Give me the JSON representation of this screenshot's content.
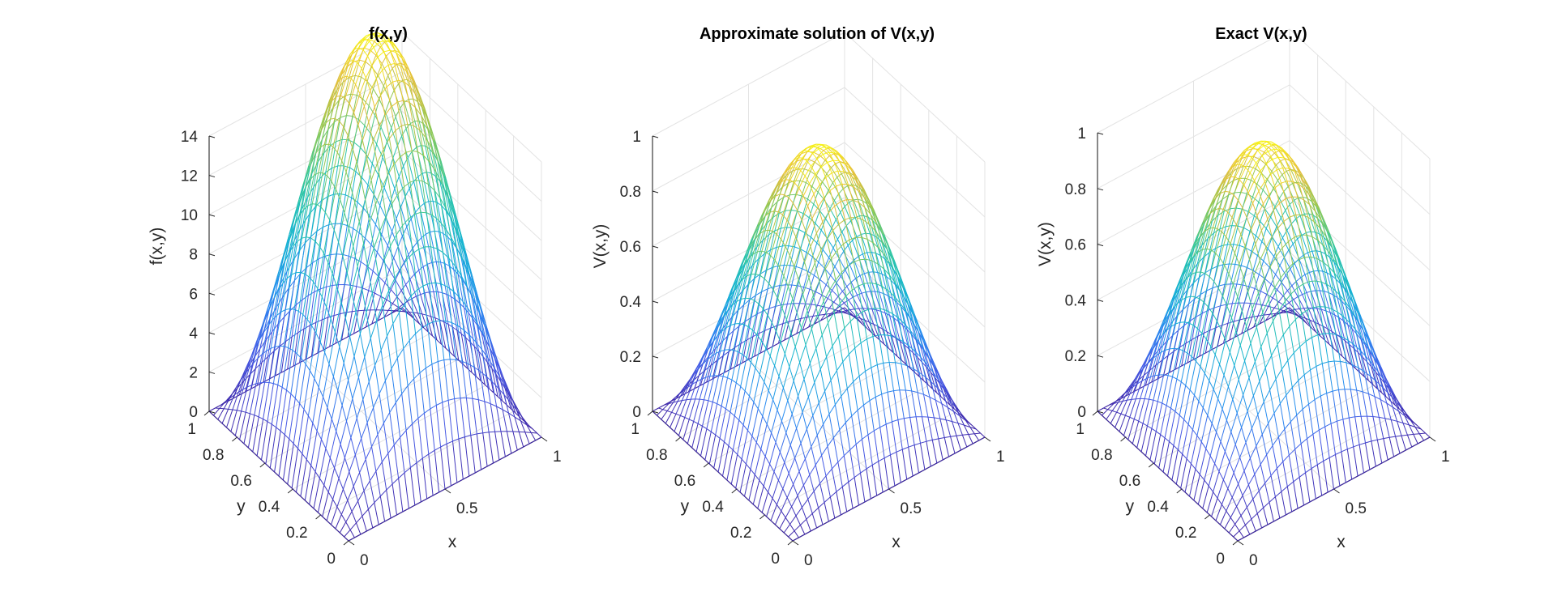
{
  "chart_data": [
    {
      "type": "surface",
      "title": "f(x,y)",
      "xlabel": "x",
      "ylabel": "y",
      "zlabel": "f(x,y)",
      "xlim": [
        0,
        1
      ],
      "ylim": [
        0,
        1
      ],
      "zlim": [
        0,
        14
      ],
      "xticks": [
        "0",
        "0.5",
        "1"
      ],
      "yticks": [
        "0",
        "0.2",
        "0.4",
        "0.6",
        "0.8",
        "1"
      ],
      "zticks": [
        "0",
        "2",
        "4",
        "6",
        "8",
        "10",
        "12",
        "14"
      ],
      "grid": true,
      "colormap": "parula",
      "function": "(2*pi^2) * sin(pi*x) * sin(pi*y)",
      "peak": {
        "x": 0.5,
        "y": 0.5,
        "z": 19.74
      }
    },
    {
      "type": "surface",
      "title": "Approximate solution of V(x,y)",
      "xlabel": "x",
      "ylabel": "y",
      "zlabel": "V(x,y)",
      "xlim": [
        0,
        1
      ],
      "ylim": [
        0,
        1
      ],
      "zlim": [
        0,
        1
      ],
      "xticks": [
        "0",
        "0.5",
        "1"
      ],
      "yticks": [
        "0",
        "0.2",
        "0.4",
        "0.6",
        "0.8",
        "1"
      ],
      "zticks": [
        "0",
        "0.2",
        "0.4",
        "0.6",
        "0.8",
        "1"
      ],
      "grid": true,
      "colormap": "parula",
      "function": "sin(pi*x) * sin(pi*y)",
      "peak": {
        "x": 0.5,
        "y": 0.5,
        "z": 1.0
      }
    },
    {
      "type": "surface",
      "title": "Exact V(x,y)",
      "xlabel": "x",
      "ylabel": "y",
      "zlabel": "V(x,y)",
      "xlim": [
        0,
        1
      ],
      "ylim": [
        0,
        1
      ],
      "zlim": [
        0,
        1
      ],
      "xticks": [
        "0",
        "0.5",
        "1"
      ],
      "yticks": [
        "0",
        "0.2",
        "0.4",
        "0.6",
        "0.8",
        "1"
      ],
      "zticks": [
        "0",
        "0.2",
        "0.4",
        "0.6",
        "0.8",
        "1"
      ],
      "grid": true,
      "colormap": "parula",
      "function": "sin(pi*x) * sin(pi*y)",
      "peak": {
        "x": 0.5,
        "y": 0.5,
        "z": 1.0
      }
    }
  ]
}
